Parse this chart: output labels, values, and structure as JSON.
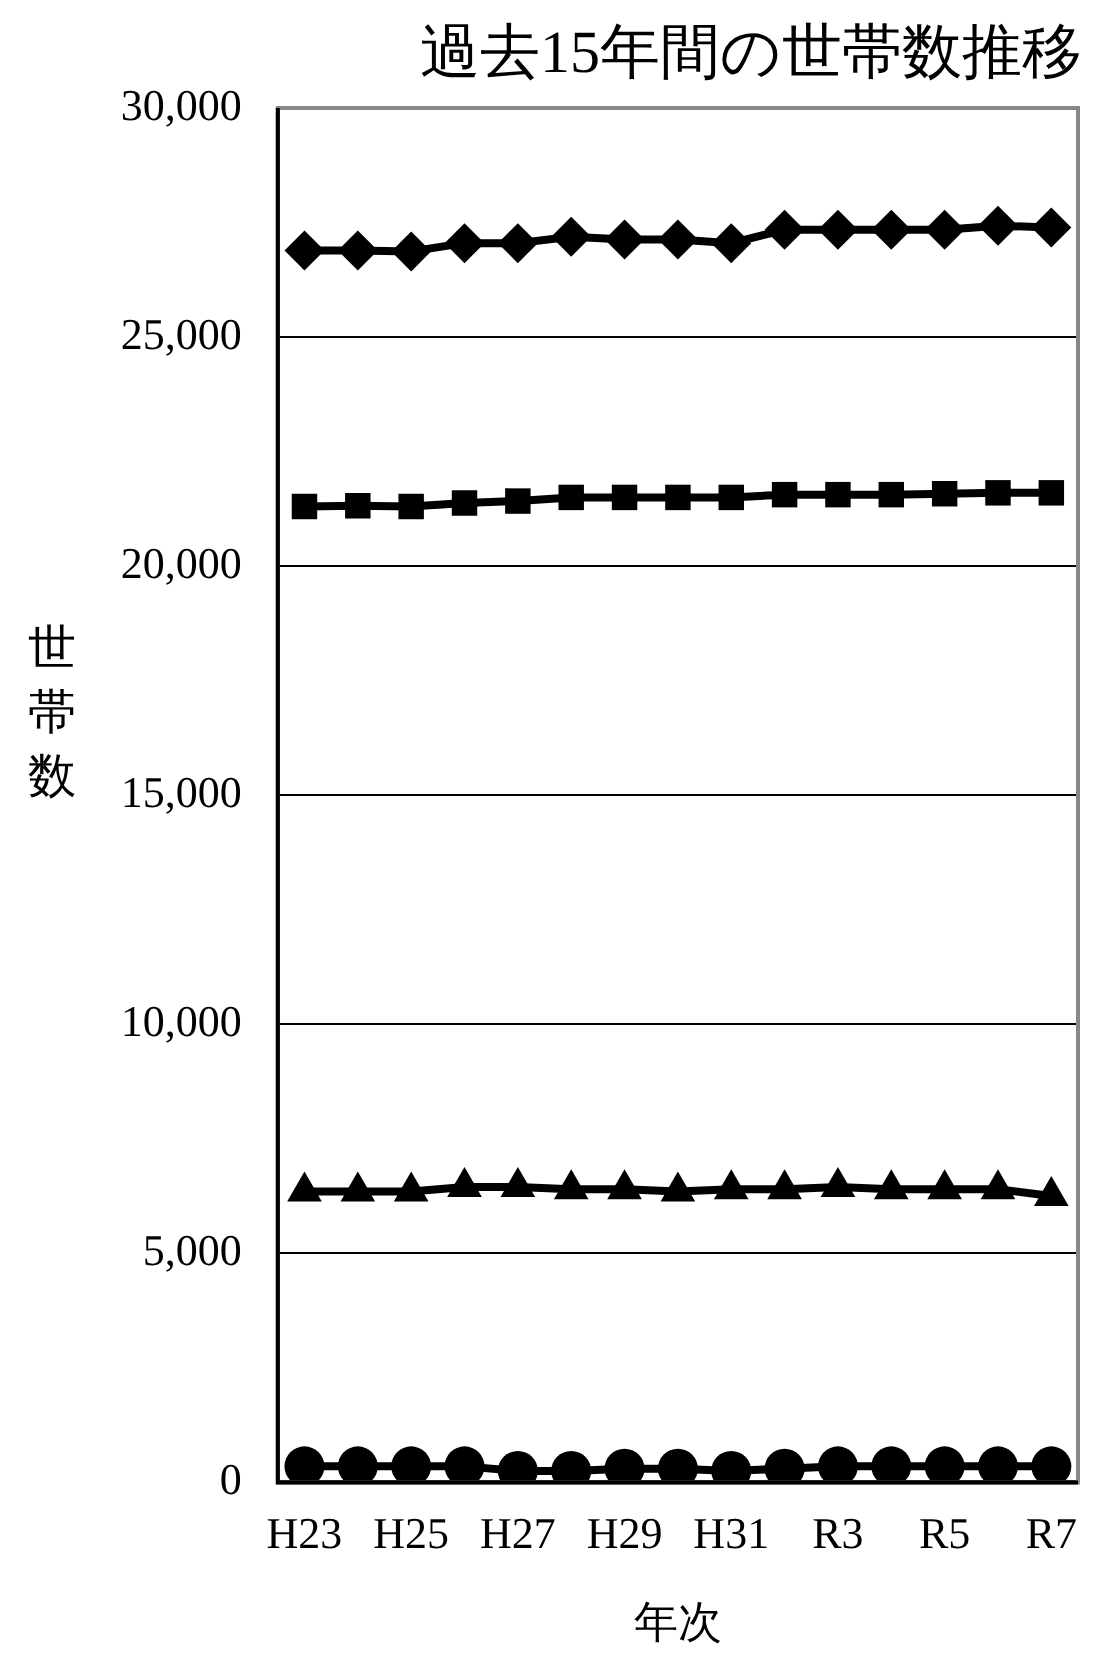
{
  "chart_data": {
    "type": "line",
    "title": "過去15年間の世帯数推移",
    "xlabel": "年次",
    "ylabel": "世帯数",
    "categories": [
      "H23",
      null,
      "H25",
      null,
      "H27",
      null,
      "H29",
      null,
      "H31",
      null,
      "R3",
      null,
      "R5",
      null,
      "R7"
    ],
    "series": [
      {
        "color": "#000000",
        "marker": "diamond",
        "values": [
          26890,
          26890,
          26870,
          27050,
          27050,
          27190,
          27130,
          27130,
          27050,
          27340,
          27340,
          27340,
          27340,
          27430,
          27390
        ]
      },
      {
        "color": "#000000",
        "marker": "square",
        "values": [
          21300,
          21320,
          21300,
          21380,
          21420,
          21500,
          21500,
          21500,
          21500,
          21560,
          21560,
          21560,
          21580,
          21600,
          21600
        ]
      },
      {
        "color": "#000000",
        "marker": "triangle",
        "values": [
          6350,
          6350,
          6350,
          6450,
          6450,
          6400,
          6400,
          6350,
          6400,
          6400,
          6450,
          6400,
          6400,
          6400,
          6250
        ]
      },
      {
        "color": "#000000",
        "marker": "circle",
        "values": [
          350,
          350,
          350,
          350,
          250,
          250,
          300,
          300,
          250,
          300,
          350,
          350,
          350,
          350,
          350
        ]
      }
    ],
    "ylim": [
      0,
      30000
    ],
    "yticks": [
      0,
      {
        "value": 5000,
        "label": "5,000"
      },
      {
        "value": 10000,
        "label": "10,000"
      },
      {
        "value": 15000,
        "label": "15,000"
      },
      {
        "value": 20000,
        "label": "20,000"
      },
      {
        "value": 25000,
        "label": "25,000"
      },
      {
        "value": 30000,
        "label": "30,000"
      }
    ],
    "grid": "y",
    "legend": false,
    "line_style": "solid"
  }
}
